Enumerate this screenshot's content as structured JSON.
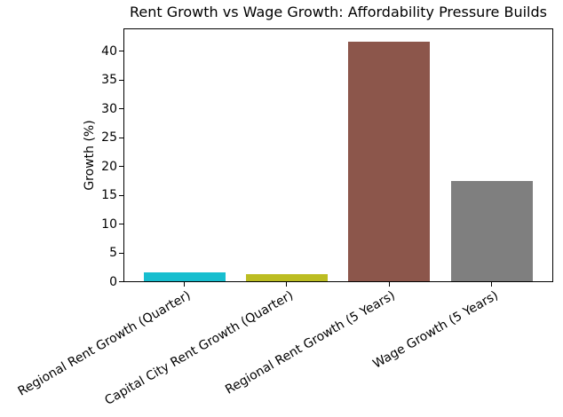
{
  "chart_data": {
    "type": "bar",
    "title": "Rent Growth vs Wage Growth: Affordability Pressure Builds",
    "xlabel": "",
    "ylabel": "Growth (%)",
    "categories": [
      "Regional Rent Growth (Quarter)",
      "Capital City Rent Growth (Quarter)",
      "Regional Rent Growth (5 Years)",
      "Wage Growth (5 Years)"
    ],
    "values": [
      1.6,
      1.3,
      41.7,
      17.5
    ],
    "bar_colors": [
      "#17becf",
      "#bcbd22",
      "#8c564b",
      "#7f7f7f"
    ],
    "ylim": [
      0,
      44
    ],
    "yticks": [
      0,
      5,
      10,
      15,
      20,
      25,
      30,
      35,
      40
    ],
    "grid": false,
    "xtick_rotation_deg": 30,
    "background_color": "#ffffff",
    "spine_color": "#000000"
  }
}
